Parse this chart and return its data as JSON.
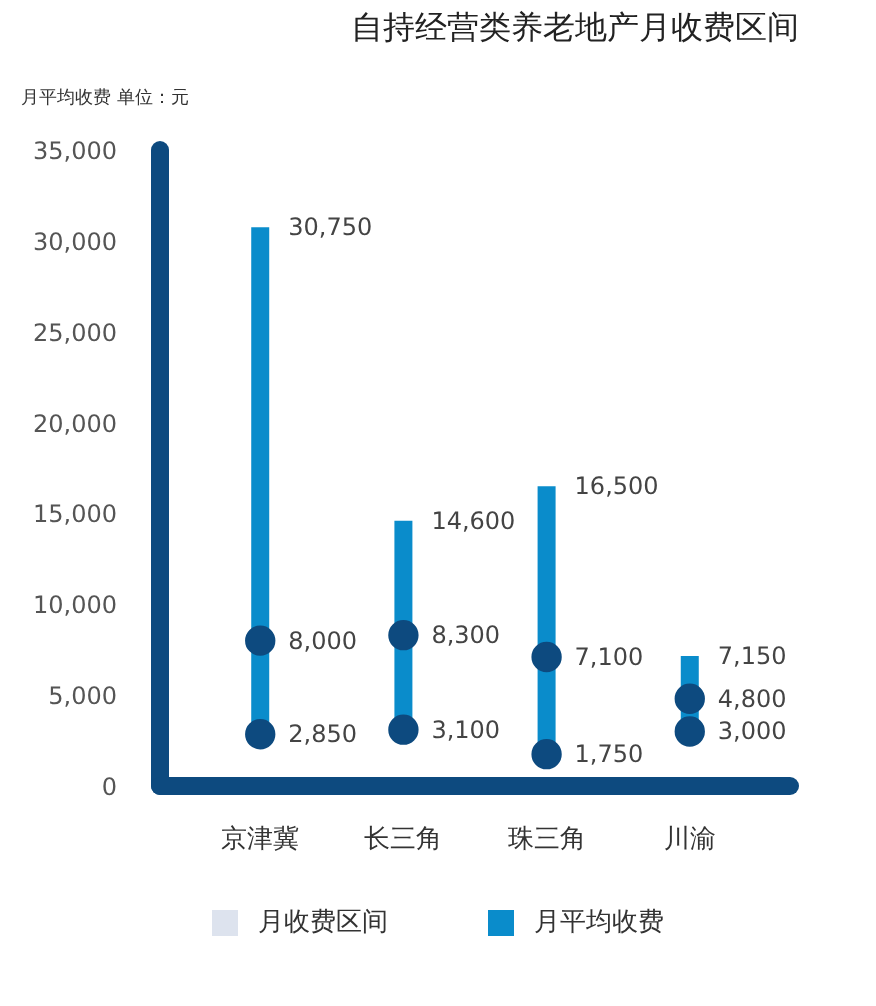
{
  "chart_data": {
    "type": "bar",
    "title": "自持经营类养老地产月收费区间",
    "ylabel": "月平均收费  单位：元",
    "categories": [
      "京津冀",
      "长三角",
      "珠三角",
      "川渝"
    ],
    "series": [
      {
        "name": "月平均收费",
        "color": "#0a8ccb",
        "base": [
          2850,
          3100,
          1750,
          3000
        ],
        "values": [
          27900,
          11500,
          14750,
          4150
        ]
      },
      {
        "type": "scatter",
        "color": "#0d4a7f",
        "x": [
          "京津冀",
          "长三角",
          "珠三角",
          "川渝"
        ],
        "values": [
          2850,
          3100,
          1750,
          3000
        ],
        "value_labels": [
          "2,850",
          "3,100",
          "1,750",
          "3,000"
        ]
      },
      {
        "type": "scatter",
        "color": "#0d4a7f",
        "x": [
          "京津冀",
          "长三角",
          "珠三角",
          "川渝"
        ],
        "values": [
          8000,
          8300,
          7100,
          4800
        ],
        "value_labels": [
          "8,000",
          "8,300",
          "7,100",
          "4,800"
        ]
      }
    ],
    "annotations": [
      "月收费区间",
      {
        "text": "30,750",
        "x": "京津冀",
        "y": 30750
      },
      {
        "text": "14,600",
        "x": "长三角",
        "y": 14600
      },
      {
        "text": "16,500",
        "x": "珠三角",
        "y": 16500
      },
      {
        "text": "7,150",
        "x": "川渝",
        "y": 7150
      }
    ],
    "ylim": [
      0,
      35000
    ],
    "yticks": [
      0,
      {
        "value": 5000,
        "label": "5,000"
      },
      {
        "value": 10000,
        "label": "10,000"
      },
      {
        "value": 15000,
        "label": "15,000"
      },
      {
        "value": 20000,
        "label": "20,000"
      },
      {
        "value": 25000,
        "label": "25,000"
      },
      {
        "value": 30000,
        "label": "30,000"
      },
      {
        "value": 35000,
        "label": "35,000"
      }
    ],
    "marker": "circle",
    "legend": "bottom",
    "grid": false
  }
}
